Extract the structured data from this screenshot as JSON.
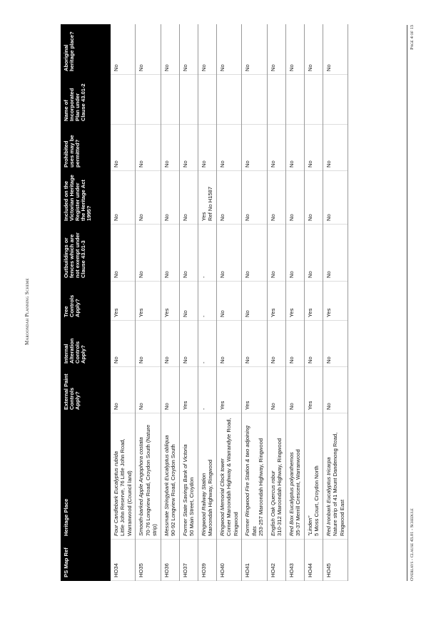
{
  "header": {
    "title": "Maroondah Planning Scheme"
  },
  "table": {
    "header": [
      "PS Map Ref",
      "Heritage Place",
      "External Paint Controls Apply?",
      "Internal Alteration Controls Apply?",
      "Tree Controls Apply?",
      "Outbuildings or fences which are not exempt under Clause 43.01-3",
      "Included on the Victorian Heritage Register under the Heritage Act 1995?",
      "Prohibited uses may be permitted?",
      "Name of Incorporated Plan under Clause 43.01-2",
      "Aboriginal heritage place?"
    ],
    "rows": [
      {
        "ref": "HO34",
        "place": "Four Candlebark Eucalyptus rubida",
        "address": "Little John Reserve, 76 Little John Road, Warranwood (Council land)",
        "ext": "No",
        "int": "No",
        "tree": "Yes",
        "outb": "No",
        "vic": "No",
        "prohib": "No",
        "abor": "No"
      },
      {
        "ref": "HO35",
        "place": "Smooth-barked Apple Angophora costata",
        "address": "70-76 Longview Road, Croydon South (Nature strip)",
        "ext": "No",
        "int": "No",
        "tree": "Yes",
        "outb": "No",
        "vic": "No",
        "prohib": "No",
        "abor": "No"
      },
      {
        "ref": "HO36",
        "place": "Messmate Stringybark Eucalyptus obliqua",
        "address": "90-92 Longview Road, Croydon South",
        "ext": "No",
        "int": "No",
        "tree": "Yes",
        "outb": "No",
        "vic": "No",
        "prohib": "No",
        "abor": "No"
      },
      {
        "ref": "HO37",
        "place": "Former State Savings Bank of Victoria",
        "address": "50 Main Street, Croydon",
        "ext": "Yes",
        "int": "No",
        "tree": "No",
        "outb": "No",
        "vic": "No",
        "prohib": "No",
        "abor": "No"
      },
      {
        "ref": "HO39",
        "place": "Ringwood Railway Station",
        "address": "Maroondah Highway, Ringwood",
        "ext": "-",
        "int": "-",
        "tree": "-",
        "outb": "-",
        "vic": "Yes",
        "vic_ref": "Ref No H1587",
        "prohib": "No",
        "abor": "No"
      },
      {
        "ref": "HO40",
        "place": "Ringwood Memorial Clock tower",
        "address": "Corner Maroondah Highway & Warrandyte Road, Ringwood",
        "ext": "Yes",
        "int": "No",
        "tree": "No",
        "outb": "No",
        "vic": "No",
        "prohib": "No",
        "abor": "No"
      },
      {
        "ref": "HO41",
        "place": "Former Ringwood Fire Station & two adjoining flats",
        "address": "253-257 Maroondah Highway, Ringwood",
        "ext": "Yes",
        "int": "No",
        "tree": "No",
        "outb": "No",
        "vic": "No",
        "prohib": "No",
        "abor": "No"
      },
      {
        "ref": "HO42",
        "place": "English Oak Quercus robur",
        "address": "310-312 Maroondah Highway, Ringwood",
        "ext": "No",
        "int": "No",
        "tree": "Yes",
        "outb": "No",
        "vic": "No",
        "prohib": "No",
        "abor": "No"
      },
      {
        "ref": "HO43",
        "place": "Red Box Eucalyptus polyanthemos",
        "address": "35-37 Merrill Crescent, Warranwood",
        "ext": "No",
        "int": "No",
        "tree": "Yes",
        "outb": "No",
        "vic": "No",
        "prohib": "No",
        "abor": "No"
      },
      {
        "ref": "HO44",
        "place": "\"Linden\"",
        "address": "5 Moss Court, Croydon North",
        "ext": "Yes",
        "int": "No",
        "tree": "Yes",
        "outb": "No",
        "vic": "No",
        "prohib": "No",
        "abor": "No"
      },
      {
        "ref": "HO45",
        "place": "Red Ironbark Eucalyptus tricarpa",
        "address": "Nature strip of 41 Mount Dandenong Road, Ringwood East",
        "ext": "No",
        "int": "No",
        "tree": "Yes",
        "outb": "No",
        "vic": "No",
        "prohib": "No",
        "abor": "No"
      }
    ]
  },
  "footer": {
    "left": "Overlays - Clause 43.01 - Schedule",
    "right": "Page 4 of 13"
  }
}
